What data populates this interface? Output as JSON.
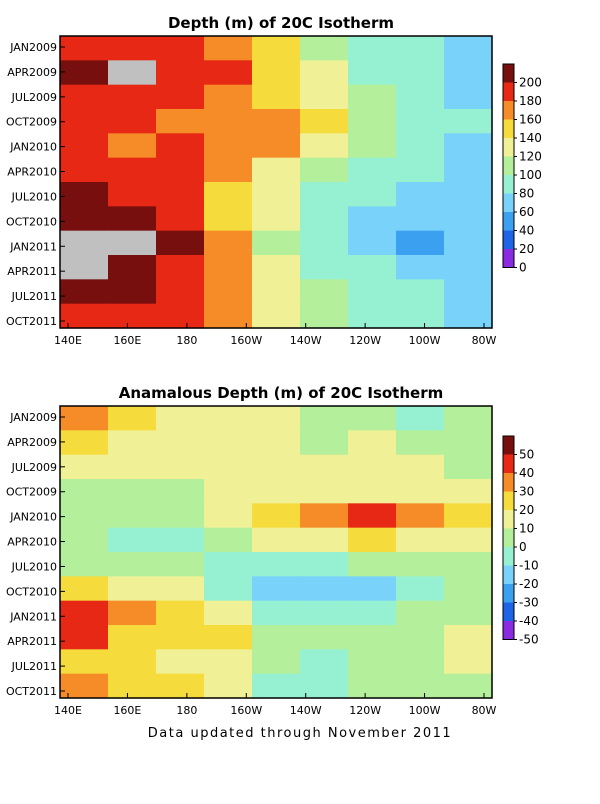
{
  "footer": "Data updated through November 2011",
  "chart_data": [
    {
      "type": "heatmap",
      "title": "Depth (m) of 20C Isotherm",
      "xlabel": "",
      "ylabel": "",
      "x_ticks": [
        "140E",
        "160E",
        "180",
        "160W",
        "140W",
        "120W",
        "100W",
        "80W"
      ],
      "y_ticks": [
        "JAN2009",
        "APR2009",
        "JUL2009",
        "OCT2009",
        "JAN2010",
        "APR2010",
        "JUL2010",
        "OCT2010",
        "JAN2011",
        "APR2011",
        "JUL2011",
        "OCT2011"
      ],
      "colorbar": {
        "levels": [
          0,
          20,
          40,
          60,
          80,
          100,
          120,
          140,
          160,
          180,
          200
        ],
        "colors": [
          "#8a2be2",
          "#1e64e6",
          "#3ca0f0",
          "#78d2fa",
          "#96f0d2",
          "#b4f09b",
          "#f0f096",
          "#f5dc3c",
          "#f58c28",
          "#e62814",
          "#780f0f",
          "#c0c0c0"
        ]
      },
      "rows": [
        {
          "month": "JAN2009",
          "values": [
            175,
            175,
            162,
            150,
            125,
            95,
            75,
            60,
            45
          ]
        },
        {
          "month": "APR2009",
          "values": [
            195,
            200,
            178,
            160,
            135,
            100,
            78,
            60,
            50
          ]
        },
        {
          "month": "JUL2009",
          "values": [
            170,
            165,
            160,
            152,
            130,
            100,
            80,
            65,
            55
          ]
        },
        {
          "month": "OCT2009",
          "values": [
            160,
            160,
            158,
            155,
            140,
            120,
            95,
            75,
            60
          ]
        },
        {
          "month": "JAN2010",
          "values": [
            160,
            158,
            160,
            155,
            145,
            118,
            90,
            70,
            55
          ]
        },
        {
          "month": "APR2010",
          "values": [
            175,
            168,
            162,
            140,
            118,
            85,
            68,
            60,
            50
          ]
        },
        {
          "month": "JUL2010",
          "values": [
            182,
            178,
            165,
            135,
            110,
            75,
            62,
            55,
            50
          ]
        },
        {
          "month": "OCT2010",
          "values": [
            185,
            182,
            170,
            135,
            100,
            70,
            58,
            50,
            45
          ]
        },
        {
          "month": "JAN2011",
          "values": [
            205,
            200,
            182,
            140,
            98,
            68,
            55,
            38,
            40
          ]
        },
        {
          "month": "APR2011",
          "values": [
            205,
            198,
            178,
            145,
            102,
            72,
            60,
            48,
            45
          ]
        },
        {
          "month": "JUL2011",
          "values": [
            185,
            180,
            172,
            152,
            110,
            82,
            72,
            62,
            55
          ]
        },
        {
          "month": "OCT2011",
          "values": [
            175,
            170,
            160,
            150,
            112,
            85,
            75,
            65,
            55
          ]
        }
      ]
    },
    {
      "type": "heatmap",
      "title": "Anamalous Depth (m) of 20C Isotherm",
      "xlabel": "",
      "ylabel": "",
      "x_ticks": [
        "140E",
        "160E",
        "180",
        "160W",
        "140W",
        "120W",
        "100W",
        "80W"
      ],
      "y_ticks": [
        "JAN2009",
        "APR2009",
        "JUL2009",
        "OCT2009",
        "JAN2010",
        "APR2010",
        "JUL2010",
        "OCT2010",
        "JAN2011",
        "APR2011",
        "JUL2011",
        "OCT2011"
      ],
      "colorbar": {
        "levels": [
          -50,
          -40,
          -30,
          -20,
          -10,
          0,
          10,
          20,
          30,
          40,
          50
        ],
        "colors": [
          "#8a2be2",
          "#1e64e6",
          "#3ca0f0",
          "#78d2fa",
          "#96f0d2",
          "#b4f09b",
          "#f0f096",
          "#f5dc3c",
          "#f58c28",
          "#e62814",
          "#780f0f",
          "#c0c0c0"
        ]
      },
      "rows": [
        {
          "month": "JAN2009",
          "values": [
            25,
            15,
            8,
            5,
            2,
            -10,
            -5,
            -12,
            -8
          ]
        },
        {
          "month": "APR2009",
          "values": [
            15,
            8,
            5,
            5,
            3,
            -5,
            0,
            -8,
            -5
          ]
        },
        {
          "month": "JUL2009",
          "values": [
            5,
            3,
            3,
            2,
            2,
            0,
            5,
            8,
            -5
          ]
        },
        {
          "month": "OCT2009",
          "values": [
            -5,
            -5,
            -3,
            0,
            5,
            5,
            8,
            5,
            0
          ]
        },
        {
          "month": "JAN2010",
          "values": [
            -5,
            -8,
            -8,
            5,
            15,
            25,
            30,
            25,
            15
          ]
        },
        {
          "month": "APR2010",
          "values": [
            -8,
            -12,
            -12,
            -8,
            3,
            8,
            10,
            5,
            0
          ]
        },
        {
          "month": "JUL2010",
          "values": [
            -2,
            -5,
            -5,
            -12,
            -15,
            -12,
            -8,
            -5,
            -2
          ]
        },
        {
          "month": "OCT2010",
          "values": [
            15,
            8,
            2,
            -12,
            -22,
            -28,
            -22,
            -15,
            -10
          ]
        },
        {
          "month": "JAN2011",
          "values": [
            32,
            28,
            18,
            5,
            -15,
            -20,
            -15,
            -10,
            -5
          ]
        },
        {
          "month": "APR2011",
          "values": [
            30,
            18,
            15,
            12,
            -5,
            -10,
            -10,
            -8,
            5
          ]
        },
        {
          "month": "JUL2011",
          "values": [
            15,
            10,
            8,
            8,
            -5,
            -12,
            -10,
            -5,
            0
          ]
        },
        {
          "month": "OCT2011",
          "values": [
            20,
            12,
            10,
            5,
            -12,
            -15,
            -10,
            -5,
            -2
          ]
        }
      ]
    }
  ]
}
